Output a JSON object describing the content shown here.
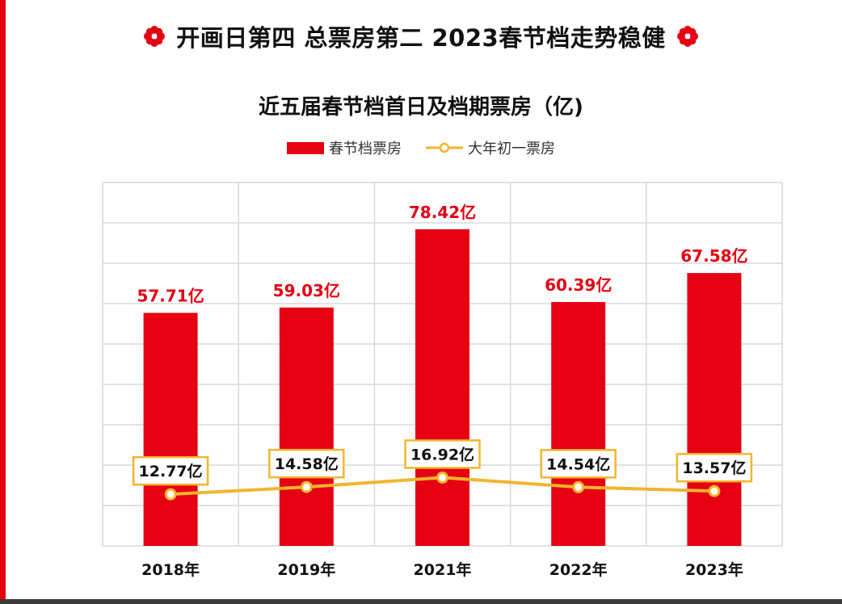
{
  "headline": "开画日第四 总票房第二 2023春节档走势稳健",
  "colors": {
    "bar": "#e50012",
    "line": "#f2b52d",
    "label_red": "#e50012",
    "grid": "#d9d9d9"
  },
  "chart_data": {
    "type": "bar",
    "title": "近五届春节档首日及档期票房（亿)",
    "categories": [
      "2018年",
      "2019年",
      "2021年",
      "2022年",
      "2023年"
    ],
    "ylim": [
      0,
      90
    ],
    "grid": true,
    "legend_position": "top",
    "series": [
      {
        "name": "春节档票房",
        "type": "bar",
        "values": [
          57.71,
          59.03,
          78.42,
          60.39,
          67.58
        ],
        "labels": [
          "57.71亿",
          "59.03亿",
          "78.42亿",
          "60.39亿",
          "67.58亿"
        ]
      },
      {
        "name": "大年初一票房",
        "type": "line",
        "values": [
          12.77,
          14.58,
          16.92,
          14.54,
          13.57
        ],
        "labels": [
          "12.77亿",
          "14.58亿",
          "16.92亿",
          "14.54亿",
          "13.57亿"
        ]
      }
    ]
  }
}
